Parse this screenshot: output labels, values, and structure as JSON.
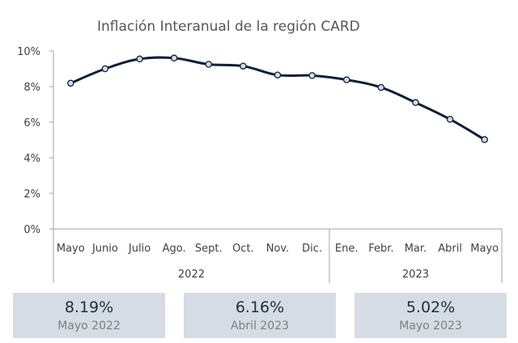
{
  "chart_data": {
    "type": "line",
    "title": "Inflación Interanual de la región CARD",
    "categories": [
      "Mayo",
      "Junio",
      "Julio",
      "Ago.",
      "Sept.",
      "Oct.",
      "Nov.",
      "Dic.",
      "Ene.",
      "Febr.",
      "Mar.",
      "Abril",
      "Mayo"
    ],
    "year_groups": [
      {
        "label": "2022",
        "count": 8
      },
      {
        "label": "2023",
        "count": 5
      }
    ],
    "series": [
      {
        "values": [
          8.19,
          9.0,
          9.55,
          9.6,
          9.25,
          9.15,
          8.65,
          8.62,
          8.38,
          7.95,
          7.1,
          6.16,
          5.02
        ],
        "color": "#0f1f38"
      }
    ],
    "yticks": [
      "0%",
      "2%",
      "4%",
      "6%",
      "8%",
      "10%"
    ],
    "ylim": [
      0,
      10
    ],
    "grid": false,
    "legend": "none"
  },
  "cards": [
    {
      "value": "8.19%",
      "label": "Mayo 2022"
    },
    {
      "value": "6.16%",
      "label": "Abril 2023"
    },
    {
      "value": "5.02%",
      "label": "Mayo 2023"
    }
  ],
  "colors": {
    "line": "#0f1f38",
    "marker_fill": "#d6dce4",
    "card_bg": "#d6dce4",
    "axis": "#a6a6a6"
  }
}
